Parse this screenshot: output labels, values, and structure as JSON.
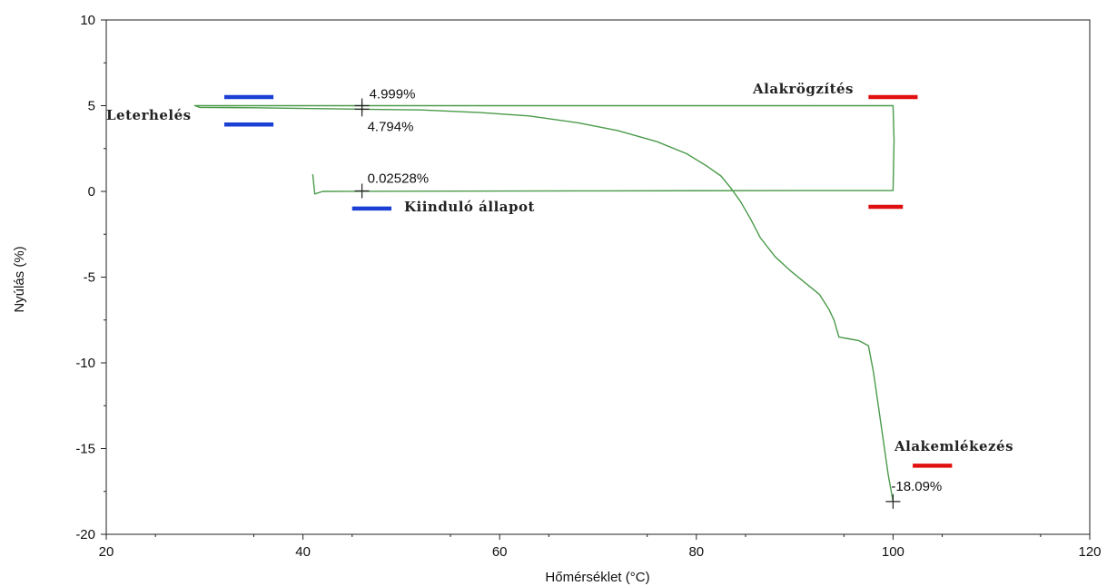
{
  "chart_data": {
    "type": "line",
    "title": "",
    "xlabel": "Hőmérséklet (°C)",
    "ylabel": "Nyúlás (%)",
    "xlim": [
      20,
      120
    ],
    "ylim": [
      -20,
      10
    ],
    "xticks": [
      20,
      40,
      60,
      80,
      100,
      120
    ],
    "yticks": [
      -20,
      -15,
      -10,
      -5,
      0,
      5,
      10
    ],
    "grid": false,
    "legend": "none",
    "series_color": "#4a9a4a",
    "series": [
      {
        "name": "",
        "x": [
          41,
          41.2,
          42,
          50,
          70,
          90,
          100,
          100.1,
          100,
          90,
          80,
          60,
          46,
          40,
          35,
          30,
          29,
          29.5,
          35,
          46,
          52,
          58,
          63,
          68,
          72,
          76,
          79,
          81,
          82.5,
          83.5,
          84.5,
          85.5,
          86.5,
          88,
          89.5,
          91,
          92.5,
          93.5,
          94,
          94.5,
          95.5,
          96.5,
          97.5,
          98,
          98.5,
          99,
          99.5,
          100
        ],
        "y": [
          1.0,
          -0.15,
          0.0,
          0.01,
          0.03,
          0.05,
          0.05,
          3.0,
          5.0,
          5.0,
          5.0,
          5.0,
          4.999,
          5.0,
          5.0,
          5.0,
          5.0,
          4.9,
          4.88,
          4.794,
          4.75,
          4.6,
          4.4,
          4.0,
          3.55,
          2.9,
          2.2,
          1.5,
          0.9,
          0.2,
          -0.6,
          -1.6,
          -2.7,
          -3.8,
          -4.6,
          -5.3,
          -6.0,
          -6.9,
          -7.5,
          -8.5,
          -8.6,
          -8.7,
          -9.0,
          -10.5,
          -12.5,
          -14.5,
          -16.5,
          -18.09
        ]
      }
    ],
    "markers": [
      {
        "x": 46,
        "y": 4.999,
        "label": "4.999%"
      },
      {
        "x": 46,
        "y": 4.794,
        "label": "4.794%"
      },
      {
        "x": 46,
        "y": 0.02528,
        "label": "0.02528%"
      },
      {
        "x": 100,
        "y": -18.09,
        "label": "-18.09%"
      }
    ],
    "phases": [
      {
        "label": "Leterhelés",
        "color": "#1a3fd4",
        "bars": [
          {
            "x1": 32,
            "x2": 37,
            "y": 5.5
          },
          {
            "x1": 32,
            "x2": 37,
            "y": 3.9
          }
        ]
      },
      {
        "label": "Alakrögzítés",
        "color": "#e01010",
        "bars": [
          {
            "x1": 97.5,
            "x2": 102.5,
            "y": 5.5
          },
          {
            "x1": 97.5,
            "x2": 101,
            "y": -0.9
          }
        ]
      },
      {
        "label": "Kiinduló állapot",
        "color": "#1a3fd4",
        "bars": [
          {
            "x1": 45,
            "x2": 49,
            "y": -1.0
          }
        ]
      },
      {
        "label": "Alakemlékezés",
        "color": "#e01010",
        "bars": [
          {
            "x1": 102,
            "x2": 106,
            "y": -16.0
          }
        ]
      }
    ]
  }
}
